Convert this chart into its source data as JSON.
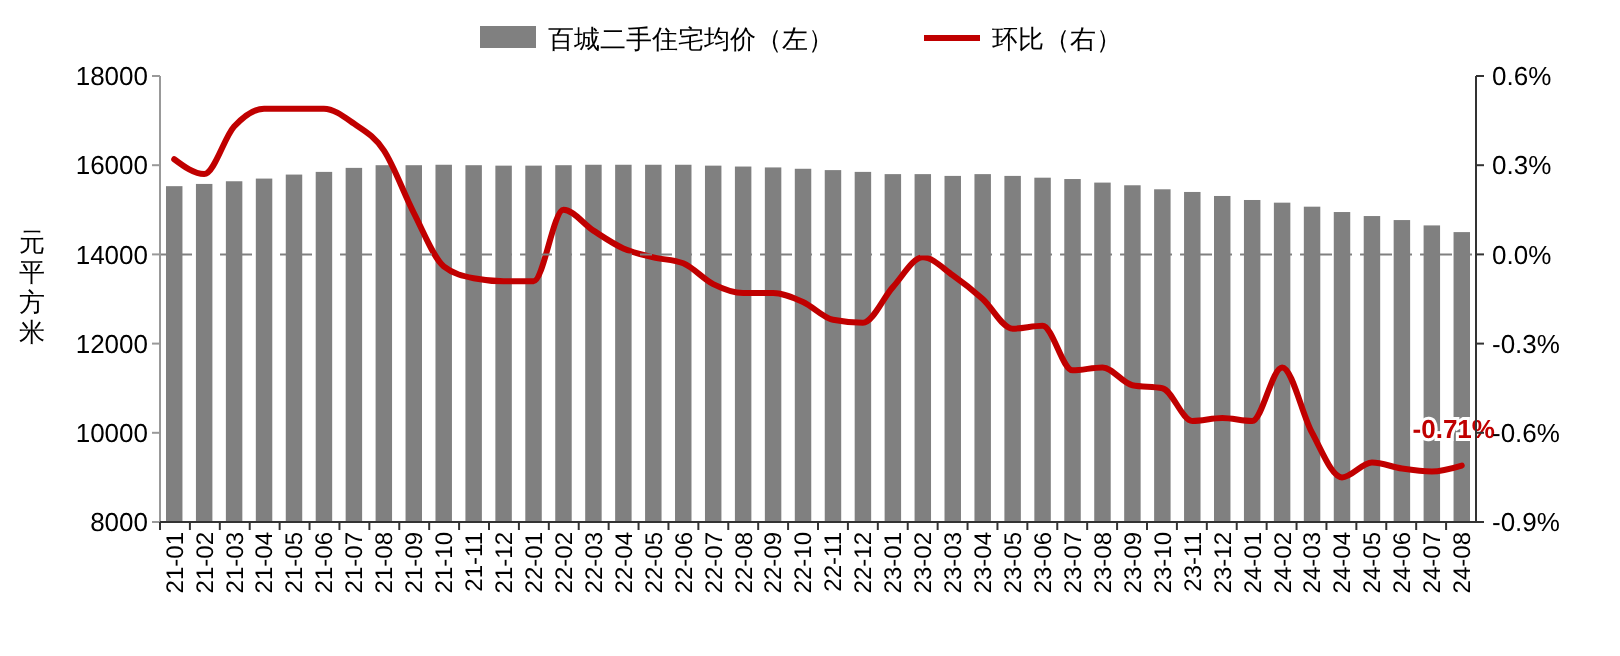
{
  "chart_data": {
    "type": "bar",
    "ylabel": "元平方米",
    "categories": [
      "21-01",
      "21-02",
      "21-03",
      "21-04",
      "21-05",
      "21-06",
      "21-07",
      "21-08",
      "21-09",
      "21-10",
      "21-11",
      "21-12",
      "22-01",
      "22-02",
      "22-03",
      "22-04",
      "22-05",
      "22-06",
      "22-07",
      "22-08",
      "22-09",
      "22-10",
      "22-11",
      "22-12",
      "23-01",
      "23-02",
      "23-03",
      "23-04",
      "23-05",
      "23-06",
      "23-07",
      "23-08",
      "23-09",
      "23-10",
      "23-11",
      "23-12",
      "24-01",
      "24-02",
      "24-03",
      "24-04",
      "24-05",
      "24-06",
      "24-07",
      "24-08"
    ],
    "series": [
      {
        "name": "百城二手住宅均价（左）",
        "color": "#808080",
        "values": [
          15530,
          15580,
          15640,
          15700,
          15790,
          15850,
          15940,
          16000,
          16000,
          16010,
          16000,
          15990,
          15990,
          16000,
          16010,
          16010,
          16010,
          16010,
          15990,
          15970,
          15950,
          15920,
          15890,
          15850,
          15800,
          15800,
          15760,
          15800,
          15760,
          15720,
          15690,
          15610,
          15550,
          15460,
          15400,
          15310,
          15220,
          15160,
          15070,
          14950,
          14860,
          14770,
          14650,
          14500
        ]
      },
      {
        "name": "环比（右）",
        "type": "line",
        "axis": "y2",
        "color": "#c00000",
        "values": [
          0.32,
          0.27,
          0.43,
          0.49,
          0.49,
          0.49,
          0.44,
          0.35,
          0.14,
          -0.04,
          -0.08,
          -0.09,
          -0.09,
          0.15,
          0.08,
          0.02,
          -0.01,
          -0.03,
          -0.1,
          -0.13,
          -0.13,
          -0.16,
          -0.22,
          -0.23,
          -0.11,
          -0.01,
          -0.07,
          -0.15,
          -0.25,
          -0.24,
          -0.39,
          -0.38,
          -0.44,
          -0.45,
          -0.56,
          -0.55,
          -0.56,
          -0.38,
          -0.6,
          -0.75,
          -0.7,
          -0.72,
          -0.73,
          -0.71
        ],
        "value_labels": [
          null,
          null,
          null,
          null,
          null,
          null,
          null,
          null,
          null,
          null,
          null,
          null,
          null,
          null,
          null,
          null,
          null,
          null,
          null,
          null,
          null,
          null,
          null,
          null,
          null,
          null,
          null,
          null,
          null,
          null,
          null,
          null,
          null,
          null,
          null,
          null,
          null,
          null,
          null,
          null,
          null,
          null,
          null,
          "-0.71%"
        ]
      }
    ],
    "ylim": [
      8000,
      18000
    ],
    "yticks": [
      8000,
      10000,
      12000,
      14000,
      16000,
      18000
    ],
    "y2lim": [
      -0.9,
      0.6
    ],
    "y2ticks": [
      {
        "value": -0.9,
        "label": "-0.9%"
      },
      {
        "value": -0.6,
        "label": "-0.6%"
      },
      {
        "value": -0.3,
        "label": "-0.3%"
      },
      {
        "value": 0,
        "label": "0.0%"
      },
      {
        "value": 0.3,
        "label": "0.3%"
      },
      {
        "value": 0.6,
        "label": "0.6%"
      }
    ],
    "ref_lines": [
      {
        "axis": "y2",
        "value": 0,
        "color": "#808080",
        "line_style": "dashed"
      }
    ],
    "legend": "top",
    "marker": "none",
    "grid": false
  }
}
